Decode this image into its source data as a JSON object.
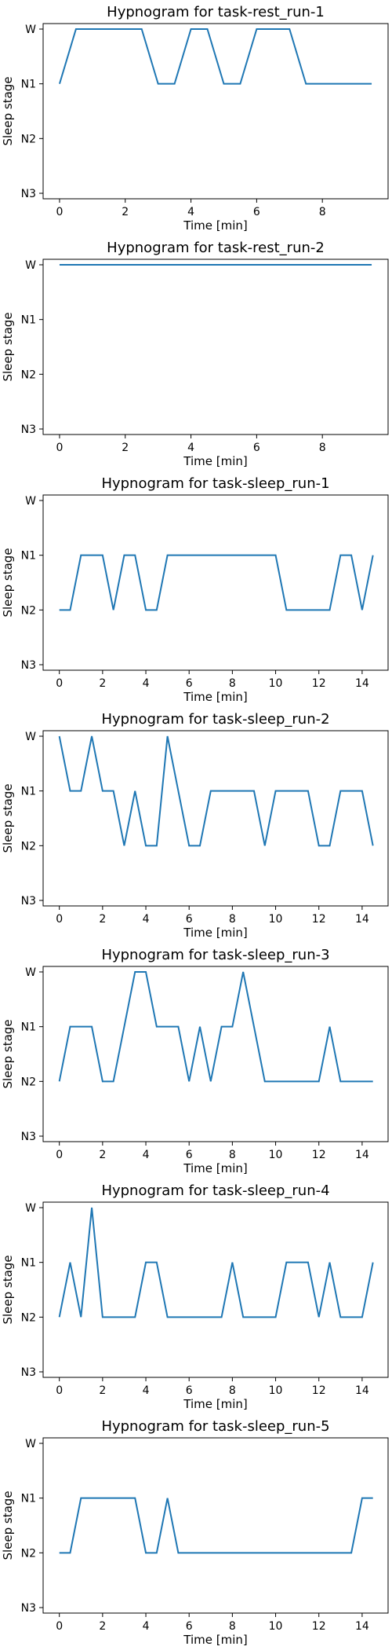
{
  "chart_data": [
    {
      "type": "line",
      "title": "Hypnogram for task-rest_run-1",
      "xlabel": "Time [min]",
      "ylabel": "Sleep stage",
      "xlim": [
        -0.5,
        10
      ],
      "x_ticks": [
        0,
        2,
        4,
        6,
        8
      ],
      "y_categories": [
        "W",
        "N1",
        "N2",
        "N3"
      ],
      "grid": false,
      "series": [
        {
          "color": "#1f77b4",
          "x": [
            0,
            0.5,
            1,
            1.5,
            2,
            2.5,
            3,
            3.5,
            4,
            4.5,
            5,
            5.5,
            6,
            6.5,
            7,
            7.5,
            8,
            8.5,
            9,
            9.5
          ],
          "y": [
            "N1",
            "W",
            "W",
            "W",
            "W",
            "W",
            "N1",
            "N1",
            "W",
            "W",
            "N1",
            "N1",
            "W",
            "W",
            "W",
            "N1",
            "N1",
            "N1",
            "N1",
            "N1"
          ]
        }
      ]
    },
    {
      "type": "line",
      "title": "Hypnogram for task-rest_run-2",
      "xlabel": "Time [min]",
      "ylabel": "Sleep stage",
      "xlim": [
        -0.5,
        10
      ],
      "x_ticks": [
        0,
        2,
        4,
        6,
        8
      ],
      "y_categories": [
        "W",
        "N1",
        "N2",
        "N3"
      ],
      "grid": false,
      "series": [
        {
          "color": "#1f77b4",
          "x": [
            0,
            0.5,
            1,
            1.5,
            2,
            2.5,
            3,
            3.5,
            4,
            4.5,
            5,
            5.5,
            6,
            6.5,
            7,
            7.5,
            8,
            8.5,
            9,
            9.5
          ],
          "y": [
            "W",
            "W",
            "W",
            "W",
            "W",
            "W",
            "W",
            "W",
            "W",
            "W",
            "W",
            "W",
            "W",
            "W",
            "W",
            "W",
            "W",
            "W",
            "W",
            "W"
          ]
        }
      ]
    },
    {
      "type": "line",
      "title": "Hypnogram for task-sleep_run-1",
      "xlabel": "Time [min]",
      "ylabel": "Sleep stage",
      "xlim": [
        -0.75,
        15.2
      ],
      "x_ticks": [
        0,
        2,
        4,
        6,
        8,
        10,
        12,
        14
      ],
      "y_categories": [
        "W",
        "N1",
        "N2",
        "N3"
      ],
      "grid": false,
      "series": [
        {
          "color": "#1f77b4",
          "x": [
            0,
            0.5,
            1,
            1.5,
            2,
            2.5,
            3,
            3.5,
            4,
            4.5,
            5,
            5.5,
            6,
            6.5,
            7,
            7.5,
            8,
            8.5,
            9,
            9.5,
            10,
            10.5,
            11,
            11.5,
            12,
            12.5,
            13,
            13.5,
            14,
            14.5
          ],
          "y": [
            "N2",
            "N2",
            "N1",
            "N1",
            "N1",
            "N2",
            "N1",
            "N1",
            "N2",
            "N2",
            "N1",
            "N1",
            "N1",
            "N1",
            "N1",
            "N1",
            "N1",
            "N1",
            "N1",
            "N1",
            "N1",
            "N2",
            "N2",
            "N2",
            "N2",
            "N2",
            "N1",
            "N1",
            "N2",
            "N1"
          ]
        }
      ]
    },
    {
      "type": "line",
      "title": "Hypnogram for task-sleep_run-2",
      "xlabel": "Time [min]",
      "ylabel": "Sleep stage",
      "xlim": [
        -0.75,
        15.2
      ],
      "x_ticks": [
        0,
        2,
        4,
        6,
        8,
        10,
        12,
        14
      ],
      "y_categories": [
        "W",
        "N1",
        "N2",
        "N3"
      ],
      "grid": false,
      "series": [
        {
          "color": "#1f77b4",
          "x": [
            0,
            0.5,
            1,
            1.5,
            2,
            2.5,
            3,
            3.5,
            4,
            4.5,
            5,
            5.5,
            6,
            6.5,
            7,
            7.5,
            8,
            8.5,
            9,
            9.5,
            10,
            10.5,
            11,
            11.5,
            12,
            12.5,
            13,
            13.5,
            14,
            14.5
          ],
          "y": [
            "W",
            "N1",
            "N1",
            "W",
            "N1",
            "N1",
            "N2",
            "N1",
            "N2",
            "N2",
            "W",
            "N1",
            "N2",
            "N2",
            "N1",
            "N1",
            "N1",
            "N1",
            "N1",
            "N2",
            "N1",
            "N1",
            "N1",
            "N1",
            "N2",
            "N2",
            "N1",
            "N1",
            "N1",
            "N2"
          ]
        }
      ]
    },
    {
      "type": "line",
      "title": "Hypnogram for task-sleep_run-3",
      "xlabel": "Time [min]",
      "ylabel": "Sleep stage",
      "xlim": [
        -0.75,
        15.2
      ],
      "x_ticks": [
        0,
        2,
        4,
        6,
        8,
        10,
        12,
        14
      ],
      "y_categories": [
        "W",
        "N1",
        "N2",
        "N3"
      ],
      "grid": false,
      "series": [
        {
          "color": "#1f77b4",
          "x": [
            0,
            0.5,
            1,
            1.5,
            2,
            2.5,
            3,
            3.5,
            4,
            4.5,
            5,
            5.5,
            6,
            6.5,
            7,
            7.5,
            8,
            8.5,
            9,
            9.5,
            10,
            10.5,
            11,
            11.5,
            12,
            12.5,
            13,
            13.5,
            14,
            14.5
          ],
          "y": [
            "N2",
            "N1",
            "N1",
            "N1",
            "N2",
            "N2",
            "N1",
            "W",
            "W",
            "N1",
            "N1",
            "N1",
            "N2",
            "N1",
            "N2",
            "N1",
            "N1",
            "W",
            "N1",
            "N2",
            "N2",
            "N2",
            "N2",
            "N2",
            "N2",
            "N1",
            "N2",
            "N2",
            "N2",
            "N2"
          ]
        }
      ]
    },
    {
      "type": "line",
      "title": "Hypnogram for task-sleep_run-4",
      "xlabel": "Time [min]",
      "ylabel": "Sleep stage",
      "xlim": [
        -0.75,
        15.2
      ],
      "x_ticks": [
        0,
        2,
        4,
        6,
        8,
        10,
        12,
        14
      ],
      "y_categories": [
        "W",
        "N1",
        "N2",
        "N3"
      ],
      "grid": false,
      "series": [
        {
          "color": "#1f77b4",
          "x": [
            0,
            0.5,
            1,
            1.5,
            2,
            2.5,
            3,
            3.5,
            4,
            4.5,
            5,
            5.5,
            6,
            6.5,
            7,
            7.5,
            8,
            8.5,
            9,
            9.5,
            10,
            10.5,
            11,
            11.5,
            12,
            12.5,
            13,
            13.5,
            14,
            14.5
          ],
          "y": [
            "N2",
            "N1",
            "N2",
            "W",
            "N2",
            "N2",
            "N2",
            "N2",
            "N1",
            "N1",
            "N2",
            "N2",
            "N2",
            "N2",
            "N2",
            "N2",
            "N1",
            "N2",
            "N2",
            "N2",
            "N2",
            "N1",
            "N1",
            "N1",
            "N2",
            "N1",
            "N2",
            "N2",
            "N2",
            "N1"
          ]
        }
      ]
    },
    {
      "type": "line",
      "title": "Hypnogram for task-sleep_run-5",
      "xlabel": "Time [min]",
      "ylabel": "Sleep stage",
      "xlim": [
        -0.75,
        15.2
      ],
      "x_ticks": [
        0,
        2,
        4,
        6,
        8,
        10,
        12,
        14
      ],
      "y_categories": [
        "W",
        "N1",
        "N2",
        "N3"
      ],
      "grid": false,
      "series": [
        {
          "color": "#1f77b4",
          "x": [
            0,
            0.5,
            1,
            1.5,
            2,
            2.5,
            3,
            3.5,
            4,
            4.5,
            5,
            5.5,
            6,
            6.5,
            7,
            7.5,
            8,
            8.5,
            9,
            9.5,
            10,
            10.5,
            11,
            11.5,
            12,
            12.5,
            13,
            13.5,
            14,
            14.5
          ],
          "y": [
            "N2",
            "N2",
            "N1",
            "N1",
            "N1",
            "N1",
            "N1",
            "N1",
            "N2",
            "N2",
            "N1",
            "N2",
            "N2",
            "N2",
            "N2",
            "N2",
            "N2",
            "N2",
            "N2",
            "N2",
            "N2",
            "N2",
            "N2",
            "N2",
            "N2",
            "N2",
            "N2",
            "N2",
            "N1",
            "N1"
          ]
        }
      ]
    }
  ]
}
